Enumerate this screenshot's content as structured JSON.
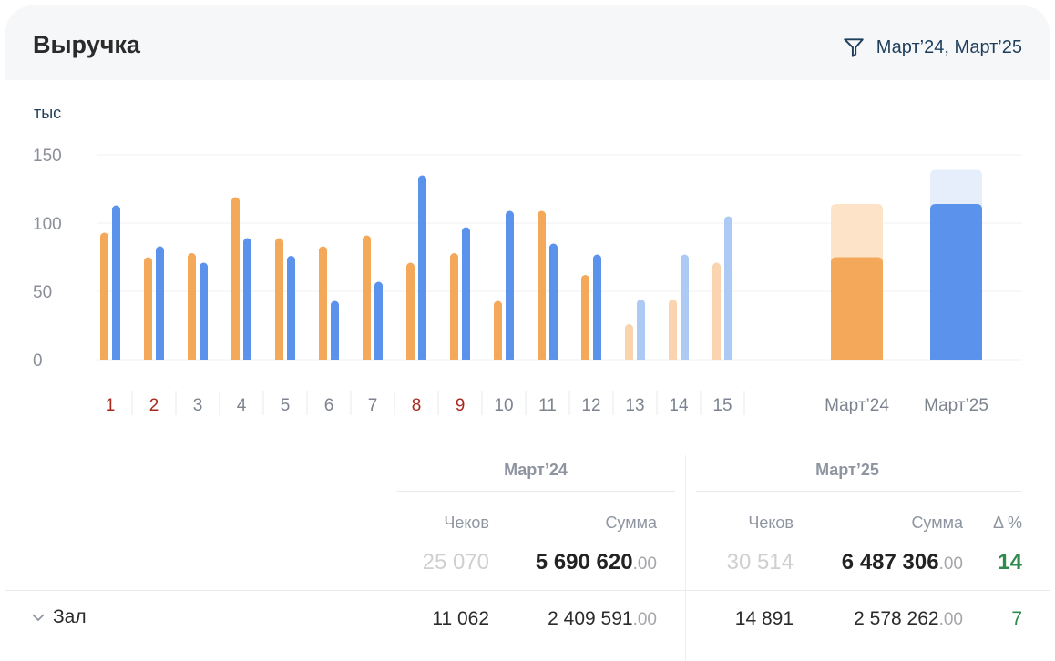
{
  "header": {
    "title": "Выручка",
    "filter_label": "Март’24, Март’25",
    "filter_icon": "filter-icon"
  },
  "chart_data": {
    "type": "bar",
    "unit_label": "тыс",
    "ylim": [
      0,
      150
    ],
    "yticks": [
      "0",
      "50",
      "100",
      "150"
    ],
    "categories": [
      "1",
      "2",
      "3",
      "4",
      "5",
      "6",
      "7",
      "8",
      "9",
      "10",
      "11",
      "12",
      "13",
      "14",
      "15"
    ],
    "highlighted_categories": [
      "1",
      "2",
      "8",
      "9"
    ],
    "faded_from_category": "13",
    "series": [
      {
        "name": "Март’24",
        "color": "#f4a85a",
        "faded_color": "#f9d4ae",
        "values": [
          93,
          75,
          78,
          119,
          89,
          83,
          91,
          71,
          78,
          43,
          109,
          62,
          26,
          44,
          71
        ]
      },
      {
        "name": "Март’25",
        "color": "#5b93ec",
        "faded_color": "#adcaf4",
        "values": [
          113,
          83,
          71,
          89,
          76,
          43,
          57,
          135,
          97,
          109,
          85,
          77,
          44,
          77,
          105
        ]
      }
    ],
    "totals": [
      {
        "label": "Март’24",
        "actual": 75,
        "full": 114,
        "color": "#f4a85a",
        "light": "#fde3c8"
      },
      {
        "label": "Март’25",
        "actual": 114,
        "full": 139,
        "color": "#5b93ec",
        "light": "#e6eefc"
      }
    ],
    "grid": true
  },
  "table": {
    "periods": [
      "Март’24",
      "Март’25"
    ],
    "columns": {
      "checks": "Чеков",
      "sum": "Сумма",
      "delta": "Δ %"
    },
    "total": {
      "p1_checks": "25 070",
      "p1_sum": "5 690 620",
      "p1_dec": ".00",
      "p2_checks": "30 514",
      "p2_sum": "6 487 306",
      "p2_dec": ".00",
      "delta": "14"
    },
    "rows": [
      {
        "name": "Зал",
        "p1_checks": "11 062",
        "p1_sum": "2 409 591",
        "p1_dec": ".00",
        "p2_checks": "14 891",
        "p2_sum": "2 578 262",
        "p2_dec": ".00",
        "delta": "7"
      }
    ]
  }
}
